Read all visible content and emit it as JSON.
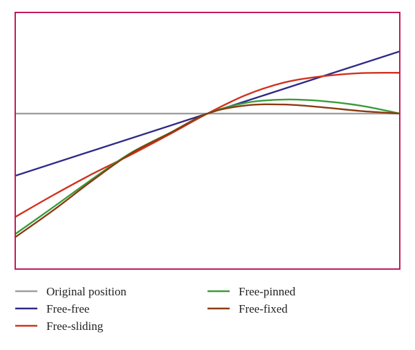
{
  "chart_data": {
    "type": "line",
    "title": "",
    "xlabel": "",
    "ylabel": "",
    "xlim": [
      0,
      1
    ],
    "ylim": [
      -1,
      0.65
    ],
    "grid": false,
    "legend_placement": "bottom",
    "frame_color": "#c2185b",
    "series": [
      {
        "name": "Original position",
        "color": "#9e9e9e",
        "x": [
          0,
          0.5,
          1
        ],
        "y": [
          0,
          0,
          0
        ]
      },
      {
        "name": "Free-free",
        "color": "#2e2a86",
        "x": [
          0,
          0.5,
          1
        ],
        "y": [
          -0.4,
          0,
          0.4
        ]
      },
      {
        "name": "Free-sliding",
        "color": "#d0311f",
        "x": [
          0,
          0.1,
          0.2,
          0.3,
          0.4,
          0.5,
          0.6,
          0.7,
          0.8,
          0.9,
          1.0
        ],
        "y": [
          -0.665,
          -0.523,
          -0.389,
          -0.266,
          -0.135,
          0,
          0.119,
          0.2,
          0.24,
          0.26,
          0.262
        ]
      },
      {
        "name": "Free-pinned",
        "color": "#3a9b3a",
        "x": [
          0,
          0.1,
          0.2,
          0.3,
          0.4,
          0.5,
          0.6,
          0.7,
          0.8,
          0.9,
          1.0
        ],
        "y": [
          -0.775,
          -0.6,
          -0.422,
          -0.254,
          -0.127,
          0,
          0.069,
          0.09,
          0.08,
          0.05,
          0
        ]
      },
      {
        "name": "Free-fixed",
        "color": "#8b3a0f",
        "x": [
          0,
          0.1,
          0.2,
          0.3,
          0.4,
          0.5,
          0.6,
          0.7,
          0.8,
          0.9,
          1.0
        ],
        "y": [
          -0.795,
          -0.62,
          -0.432,
          -0.258,
          -0.129,
          0,
          0.052,
          0.058,
          0.04,
          0.016,
          0
        ]
      }
    ]
  }
}
